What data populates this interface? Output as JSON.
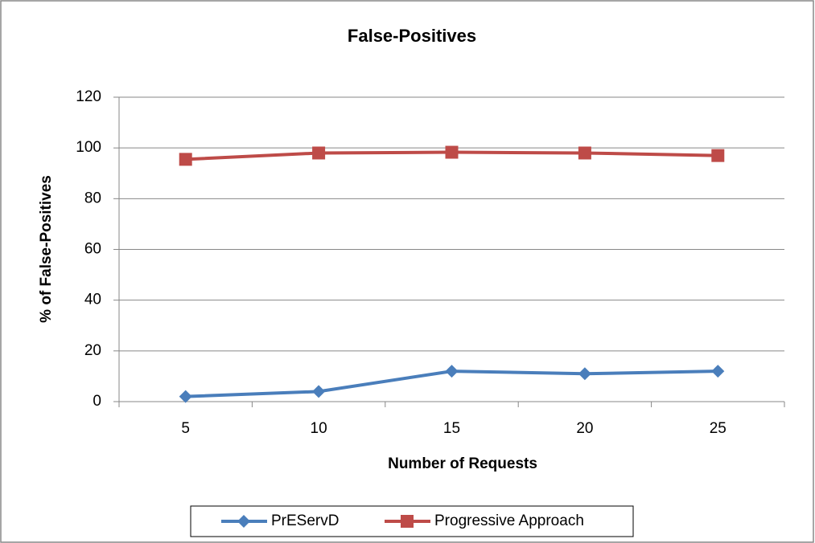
{
  "chart_data": {
    "type": "line",
    "title": "False-Positives",
    "x_label": "Number of Requests",
    "y_label": "% of False-Positives",
    "categories": [
      "5",
      "10",
      "15",
      "20",
      "25"
    ],
    "series": [
      {
        "name": "PrEServD",
        "color": "#4a7ebb",
        "marker": "diamond",
        "values": [
          2,
          4,
          12,
          11,
          12
        ]
      },
      {
        "name": "Progressive Approach",
        "color": "#be4b48",
        "marker": "square",
        "values": [
          95.5,
          98,
          98.3,
          98,
          97
        ]
      }
    ],
    "ylim": [
      0,
      120
    ],
    "yticks": [
      0,
      20,
      40,
      60,
      80,
      100,
      120
    ],
    "grid": true,
    "legend": "bottom"
  }
}
